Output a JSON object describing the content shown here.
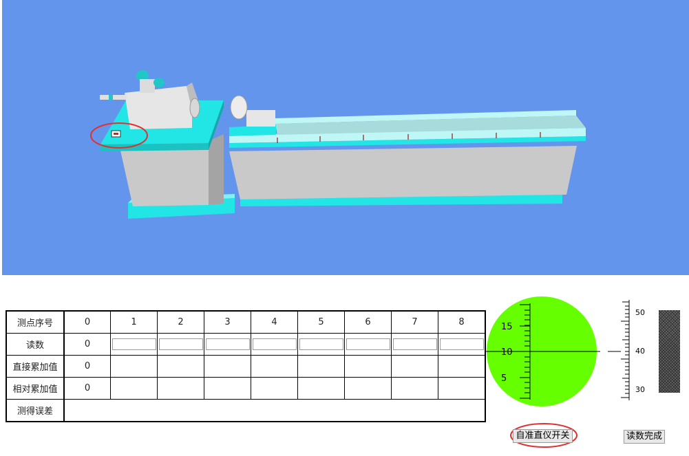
{
  "table": {
    "headers": [
      "测点序号",
      "读数",
      "直接累加值",
      "相对累加值",
      "测得误差"
    ],
    "points": [
      "0",
      "1",
      "2",
      "3",
      "4",
      "5",
      "6",
      "7",
      "8"
    ],
    "readings": [
      "0",
      "",
      "",
      "",
      "",
      "",
      "",
      "",
      ""
    ],
    "direct_sum": [
      "0",
      "",
      "",
      "",
      "",
      "",
      "",
      "",
      ""
    ],
    "relative_sum": [
      "0",
      "",
      "",
      "",
      "",
      "",
      "",
      "",
      ""
    ],
    "error": ""
  },
  "eyepiece": {
    "labels": [
      "15",
      "10",
      "5"
    ],
    "color": "#66FF00"
  },
  "scale": {
    "labels": [
      "50",
      "40",
      "30"
    ]
  },
  "buttons": {
    "collimator_switch": "自准直仪开关",
    "reading_done": "读数完成"
  },
  "colors": {
    "background": "#6495ED",
    "accent": "#22E5E5",
    "highlight": "#E03030"
  }
}
